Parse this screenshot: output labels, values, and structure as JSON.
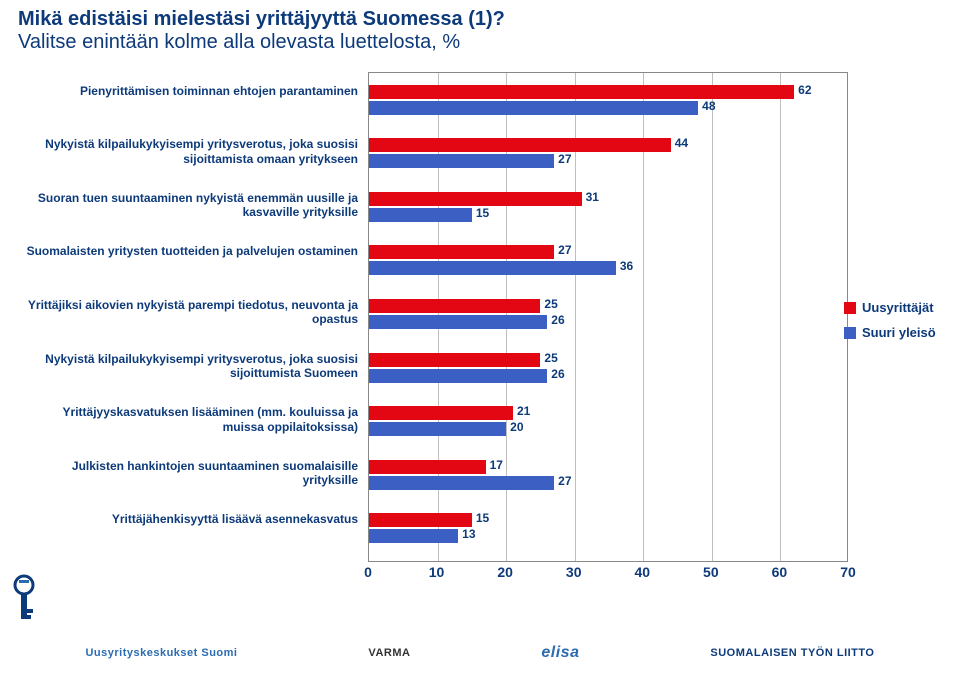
{
  "title_line1": "Mikä edistäisi mielestäsi yrittäjyyttä Suomessa (1)?",
  "title_line2": "Valitse enintään kolme alla olevasta luettelosta, %",
  "colors": {
    "series1": "#e30613",
    "series2": "#3b5fc2",
    "grid": "#bfbfbf",
    "border": "#888888",
    "text": "#0d3a7a",
    "bg": "#ffffff"
  },
  "legend": {
    "s1": "Uusyrittäjät",
    "s2": "Suuri yleisö"
  },
  "xaxis": {
    "min": 0,
    "max": 70,
    "step": 10,
    "ticks": [
      "0",
      "10",
      "20",
      "30",
      "40",
      "50",
      "60",
      "70"
    ]
  },
  "categories": [
    {
      "label": "Pienyrittämisen toiminnan ehtojen parantaminen",
      "v1": 62,
      "v2": 48
    },
    {
      "label": "Nykyistä kilpailukykyisempi yritysverotus, joka suosisi sijoittamista omaan yritykseen",
      "v1": 44,
      "v2": 27
    },
    {
      "label": "Suoran tuen suuntaaminen nykyistä enemmän uusille ja kasvaville yrityksille",
      "v1": 31,
      "v2": 15
    },
    {
      "label": "Suomalaisten yritysten tuotteiden ja palvelujen ostaminen",
      "v1": 27,
      "v2": 36
    },
    {
      "label": "Yrittäjiksi aikovien nykyistä parempi tiedotus, neuvonta ja opastus",
      "v1": 25,
      "v2": 26
    },
    {
      "label": "Nykyistä kilpailukykyisempi yritysverotus, joka suosisi sijoittumista Suomeen",
      "v1": 25,
      "v2": 26
    },
    {
      "label": "Yrittäjyyskasvatuksen lisääminen (mm. kouluissa ja muissa oppilaitoksissa)",
      "v1": 21,
      "v2": 20
    },
    {
      "label": "Julkisten hankintojen suuntaaminen suomalaisille yrityksille",
      "v1": 17,
      "v2": 27
    },
    {
      "label": "Yrittäjähenkisyyttä lisäävä asennekasvatus",
      "v1": 15,
      "v2": 13
    }
  ],
  "footer": {
    "l1": "Uusyrityskeskukset Suomi",
    "l2": "VARMA",
    "l3": "elisa",
    "l4": "SUOMALAISEN TYÖN LIITTO"
  }
}
